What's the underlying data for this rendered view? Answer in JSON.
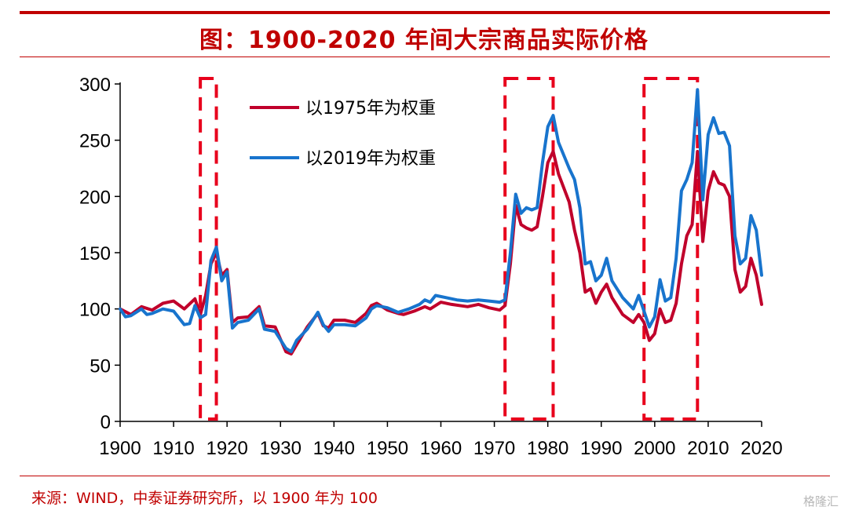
{
  "header": {
    "title": "图：1900-2020 年间大宗商品实际价格"
  },
  "footer": {
    "source": "来源：WIND，中泰证券研究所，以 1900 年为 100",
    "watermark": "格隆汇"
  },
  "chart_data": {
    "type": "line",
    "title": "图：1900-2020 年间大宗商品实际价格",
    "xlabel": "",
    "ylabel": "",
    "xlim": [
      1900,
      2020
    ],
    "ylim": [
      0,
      300
    ],
    "x_ticks": [
      1900,
      1910,
      1920,
      1930,
      1940,
      1950,
      1960,
      1970,
      1980,
      1990,
      2000,
      2010,
      2020
    ],
    "y_ticks": [
      0,
      50,
      100,
      150,
      200,
      250,
      300
    ],
    "grid": false,
    "legend_position": "top-center",
    "highlight_ranges": [
      [
        1915,
        1918
      ],
      [
        1972,
        1981
      ],
      [
        1998,
        2008
      ]
    ],
    "series": [
      {
        "name": "以1975年为权重",
        "color": "#c0002b",
        "points": [
          [
            1900,
            100
          ],
          [
            1902,
            95
          ],
          [
            1904,
            102
          ],
          [
            1906,
            99
          ],
          [
            1908,
            105
          ],
          [
            1910,
            107
          ],
          [
            1912,
            100
          ],
          [
            1914,
            109
          ],
          [
            1915,
            95
          ],
          [
            1916,
            112
          ],
          [
            1917,
            140
          ],
          [
            1918,
            150
          ],
          [
            1919,
            130
          ],
          [
            1920,
            135
          ],
          [
            1921,
            88
          ],
          [
            1922,
            92
          ],
          [
            1924,
            93
          ],
          [
            1926,
            102
          ],
          [
            1927,
            85
          ],
          [
            1929,
            84
          ],
          [
            1931,
            62
          ],
          [
            1932,
            60
          ],
          [
            1933,
            68
          ],
          [
            1935,
            84
          ],
          [
            1937,
            96
          ],
          [
            1938,
            85
          ],
          [
            1939,
            83
          ],
          [
            1940,
            90
          ],
          [
            1942,
            90
          ],
          [
            1944,
            88
          ],
          [
            1946,
            96
          ],
          [
            1947,
            103
          ],
          [
            1948,
            105
          ],
          [
            1950,
            99
          ],
          [
            1952,
            96
          ],
          [
            1953,
            95
          ],
          [
            1955,
            98
          ],
          [
            1957,
            102
          ],
          [
            1958,
            100
          ],
          [
            1960,
            106
          ],
          [
            1962,
            104
          ],
          [
            1965,
            102
          ],
          [
            1967,
            104
          ],
          [
            1969,
            101
          ],
          [
            1971,
            99
          ],
          [
            1972,
            103
          ],
          [
            1973,
            140
          ],
          [
            1974,
            192
          ],
          [
            1975,
            175
          ],
          [
            1976,
            172
          ],
          [
            1977,
            170
          ],
          [
            1978,
            173
          ],
          [
            1979,
            200
          ],
          [
            1980,
            230
          ],
          [
            1981,
            240
          ],
          [
            1982,
            220
          ],
          [
            1984,
            195
          ],
          [
            1985,
            170
          ],
          [
            1986,
            150
          ],
          [
            1987,
            115
          ],
          [
            1988,
            118
          ],
          [
            1989,
            105
          ],
          [
            1990,
            115
          ],
          [
            1991,
            122
          ],
          [
            1992,
            110
          ],
          [
            1994,
            95
          ],
          [
            1996,
            88
          ],
          [
            1997,
            95
          ],
          [
            1998,
            88
          ],
          [
            1999,
            72
          ],
          [
            2000,
            78
          ],
          [
            2001,
            100
          ],
          [
            2002,
            88
          ],
          [
            2003,
            90
          ],
          [
            2004,
            105
          ],
          [
            2005,
            140
          ],
          [
            2006,
            165
          ],
          [
            2007,
            175
          ],
          [
            2008,
            240
          ],
          [
            2009,
            160
          ],
          [
            2010,
            205
          ],
          [
            2011,
            222
          ],
          [
            2012,
            212
          ],
          [
            2013,
            210
          ],
          [
            2014,
            200
          ],
          [
            2015,
            135
          ],
          [
            2016,
            115
          ],
          [
            2017,
            120
          ],
          [
            2018,
            145
          ],
          [
            2019,
            130
          ],
          [
            2020,
            104
          ]
        ]
      },
      {
        "name": "以2019年为权重",
        "color": "#1874cd",
        "points": [
          [
            1900,
            100
          ],
          [
            1901,
            93
          ],
          [
            1902,
            94
          ],
          [
            1904,
            100
          ],
          [
            1905,
            95
          ],
          [
            1906,
            96
          ],
          [
            1908,
            100
          ],
          [
            1910,
            98
          ],
          [
            1912,
            86
          ],
          [
            1913,
            87
          ],
          [
            1914,
            103
          ],
          [
            1915,
            92
          ],
          [
            1916,
            95
          ],
          [
            1917,
            143
          ],
          [
            1918,
            155
          ],
          [
            1919,
            125
          ],
          [
            1920,
            133
          ],
          [
            1921,
            83
          ],
          [
            1922,
            88
          ],
          [
            1924,
            90
          ],
          [
            1926,
            100
          ],
          [
            1927,
            82
          ],
          [
            1929,
            80
          ],
          [
            1931,
            65
          ],
          [
            1932,
            62
          ],
          [
            1933,
            72
          ],
          [
            1935,
            82
          ],
          [
            1937,
            97
          ],
          [
            1938,
            86
          ],
          [
            1939,
            80
          ],
          [
            1940,
            86
          ],
          [
            1942,
            86
          ],
          [
            1944,
            85
          ],
          [
            1946,
            92
          ],
          [
            1947,
            100
          ],
          [
            1948,
            103
          ],
          [
            1950,
            101
          ],
          [
            1952,
            97
          ],
          [
            1954,
            100
          ],
          [
            1956,
            104
          ],
          [
            1957,
            108
          ],
          [
            1958,
            106
          ],
          [
            1959,
            112
          ],
          [
            1961,
            110
          ],
          [
            1963,
            108
          ],
          [
            1965,
            107
          ],
          [
            1967,
            108
          ],
          [
            1969,
            107
          ],
          [
            1971,
            106
          ],
          [
            1972,
            108
          ],
          [
            1973,
            150
          ],
          [
            1974,
            202
          ],
          [
            1975,
            185
          ],
          [
            1976,
            190
          ],
          [
            1977,
            188
          ],
          [
            1978,
            190
          ],
          [
            1979,
            230
          ],
          [
            1980,
            262
          ],
          [
            1981,
            272
          ],
          [
            1982,
            248
          ],
          [
            1984,
            225
          ],
          [
            1985,
            215
          ],
          [
            1986,
            190
          ],
          [
            1987,
            140
          ],
          [
            1988,
            142
          ],
          [
            1989,
            125
          ],
          [
            1990,
            130
          ],
          [
            1991,
            145
          ],
          [
            1992,
            125
          ],
          [
            1994,
            110
          ],
          [
            1996,
            100
          ],
          [
            1997,
            112
          ],
          [
            1998,
            98
          ],
          [
            1999,
            84
          ],
          [
            2000,
            93
          ],
          [
            2001,
            126
          ],
          [
            2002,
            107
          ],
          [
            2003,
            110
          ],
          [
            2004,
            145
          ],
          [
            2005,
            205
          ],
          [
            2006,
            215
          ],
          [
            2007,
            230
          ],
          [
            2008,
            295
          ],
          [
            2009,
            197
          ],
          [
            2010,
            255
          ],
          [
            2011,
            270
          ],
          [
            2012,
            256
          ],
          [
            2013,
            257
          ],
          [
            2014,
            245
          ],
          [
            2015,
            165
          ],
          [
            2016,
            140
          ],
          [
            2017,
            145
          ],
          [
            2018,
            183
          ],
          [
            2019,
            170
          ],
          [
            2020,
            130
          ]
        ]
      }
    ]
  }
}
